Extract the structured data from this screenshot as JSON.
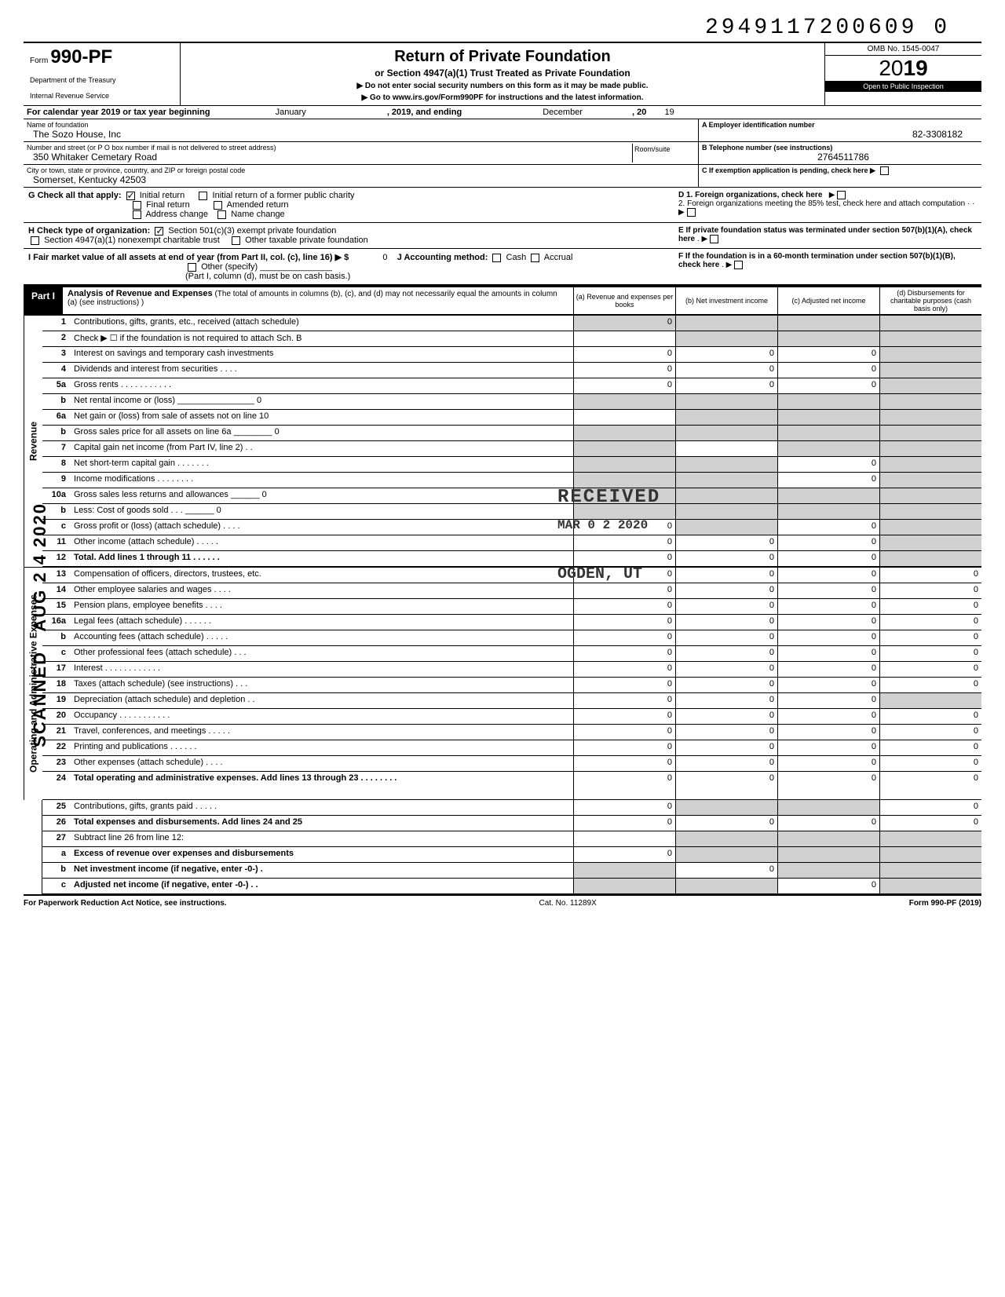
{
  "doc_id": "2949117200609 0",
  "header": {
    "form_prefix": "Form",
    "form_number": "990-PF",
    "dept1": "Department of the Treasury",
    "dept2": "Internal Revenue Service",
    "title": "Return of Private Foundation",
    "subtitle": "or Section 4947(a)(1) Trust Treated as Private Foundation",
    "note1": "▶ Do not enter social security numbers on this form as it may be made public.",
    "note2": "▶ Go to www.irs.gov/Form990PF for instructions and the latest information.",
    "omb": "OMB No. 1545-0047",
    "year_prefix": "20",
    "year": "19",
    "inspection": "Open to Public Inspection"
  },
  "cal_year": {
    "label": "For calendar year 2019 or tax year beginning",
    "begin": "January",
    "mid": ", 2019, and ending",
    "end": "December",
    "suffix": ", 20",
    "yr": "19"
  },
  "foundation": {
    "name_label": "Name of foundation",
    "name": "The Sozo House, Inc",
    "addr_label": "Number and street (or P O box number if mail is not delivered to street address)",
    "addr": "350 Whitaker Cemetary Road",
    "city_label": "City or town, state or province, country, and ZIP or foreign postal code",
    "city": "Somerset, Kentucky 42503",
    "room_label": "Room/suite",
    "ein_label": "A  Employer identification number",
    "ein": "82-3308182",
    "phone_label": "B  Telephone number (see instructions)",
    "phone": "2764511786",
    "c_label": "C  If exemption application is pending, check here ▶"
  },
  "checks": {
    "g_label": "G  Check all that apply:",
    "g_opts": [
      "Initial return",
      "Initial return of a former public charity",
      "Final return",
      "Amended return",
      "Address change",
      "Name change"
    ],
    "h_label": "H  Check type of organization:",
    "h_opts": [
      "Section 501(c)(3) exempt private foundation",
      "Section 4947(a)(1) nonexempt charitable trust",
      "Other taxable private foundation"
    ],
    "i_label": "I   Fair market value of all assets at end of year (from Part II, col. (c), line 16) ▶ $",
    "i_val": "0",
    "j_label": "J  Accounting method:",
    "j_opts": [
      "Cash",
      "Accrual",
      "Other (specify)"
    ],
    "j_note": "(Part I, column (d), must be on cash basis.)",
    "d_label": "D 1. Foreign organizations, check here",
    "d2_label": "2. Foreign organizations meeting the 85% test, check here and attach computation",
    "e_label": "E  If private foundation status was terminated under section 507(b)(1)(A), check here",
    "f_label": "F  If the foundation is in a 60-month termination under section 507(b)(1)(B), check here"
  },
  "part1": {
    "label": "Part I",
    "title": "Analysis of Revenue and Expenses",
    "desc": "(The total of amounts in columns (b), (c), and (d) may not necessarily equal the amounts in column (a) (see instructions) )",
    "col_a": "(a) Revenue and expenses per books",
    "col_b": "(b) Net investment income",
    "col_c": "(c) Adjusted net income",
    "col_d": "(d) Disbursements for charitable purposes (cash basis only)"
  },
  "sections": {
    "revenue": "Revenue",
    "expenses": "Operating and Administrative Expenses"
  },
  "lines": [
    {
      "n": "1",
      "d": "Contributions, gifts, grants, etc., received (attach schedule)",
      "a": "0",
      "b": "",
      "c": "",
      "e": "",
      "sa": true,
      "sb": true,
      "sc": true,
      "sd": true
    },
    {
      "n": "2",
      "d": "Check ▶ ☐ if the foundation is not required to attach Sch. B",
      "a": "",
      "b": "",
      "c": "",
      "e": "",
      "sa": false,
      "sb": true,
      "sc": true,
      "sd": true
    },
    {
      "n": "3",
      "d": "Interest on savings and temporary cash investments",
      "a": "0",
      "b": "0",
      "c": "0",
      "e": "",
      "sd": true
    },
    {
      "n": "4",
      "d": "Dividends and interest from securities . . . .",
      "a": "0",
      "b": "0",
      "c": "0",
      "e": "",
      "sd": true
    },
    {
      "n": "5a",
      "d": "Gross rents . . . . . . . . . . .",
      "a": "0",
      "b": "0",
      "c": "0",
      "e": "",
      "sd": true
    },
    {
      "n": "b",
      "d": "Net rental income or (loss) ________________ 0",
      "a": "",
      "b": "",
      "c": "",
      "e": "",
      "sa": true,
      "sb": true,
      "sc": true,
      "sd": true
    },
    {
      "n": "6a",
      "d": "Net gain or (loss) from sale of assets not on line 10",
      "a": "",
      "b": "",
      "c": "",
      "e": "",
      "sb": true,
      "sc": true,
      "sd": true
    },
    {
      "n": "b",
      "d": "Gross sales price for all assets on line 6a ________ 0",
      "a": "",
      "b": "",
      "c": "",
      "e": "",
      "sa": true,
      "sb": true,
      "sc": true,
      "sd": true
    },
    {
      "n": "7",
      "d": "Capital gain net income (from Part IV, line 2) . .",
      "a": "",
      "b": "",
      "c": "",
      "e": "",
      "sa": true,
      "sc": true,
      "sd": true
    },
    {
      "n": "8",
      "d": "Net short-term capital gain . . . . . . .",
      "a": "",
      "b": "",
      "c": "0",
      "e": "",
      "sa": true,
      "sb": true,
      "sd": true
    },
    {
      "n": "9",
      "d": "Income modifications  . . . . . . . .",
      "a": "",
      "b": "",
      "c": "0",
      "e": "",
      "sa": true,
      "sb": true,
      "sd": true
    },
    {
      "n": "10a",
      "d": "Gross sales less returns and allowances ______ 0",
      "a": "",
      "b": "",
      "c": "",
      "e": "",
      "sa": true,
      "sb": true,
      "sc": true,
      "sd": true
    },
    {
      "n": "b",
      "d": "Less: Cost of goods sold  . . . ______ 0",
      "a": "",
      "b": "",
      "c": "",
      "e": "",
      "sa": true,
      "sb": true,
      "sc": true,
      "sd": true
    },
    {
      "n": "c",
      "d": "Gross profit or (loss) (attach schedule) . . . .",
      "a": "0",
      "b": "",
      "c": "0",
      "e": "",
      "sb": true,
      "sd": true
    },
    {
      "n": "11",
      "d": "Other income (attach schedule) . . . . .",
      "a": "0",
      "b": "0",
      "c": "0",
      "e": "",
      "sd": true
    },
    {
      "n": "12",
      "d": "Total. Add lines 1 through 11 . . . . . .",
      "a": "0",
      "b": "0",
      "c": "0",
      "e": "",
      "bold": true,
      "sd": true
    },
    {
      "n": "13",
      "d": "Compensation of officers, directors, trustees, etc.",
      "a": "0",
      "b": "0",
      "c": "0",
      "e": "0"
    },
    {
      "n": "14",
      "d": "Other employee salaries and wages . . . .",
      "a": "0",
      "b": "0",
      "c": "0",
      "e": "0"
    },
    {
      "n": "15",
      "d": "Pension plans, employee benefits  . . . .",
      "a": "0",
      "b": "0",
      "c": "0",
      "e": "0"
    },
    {
      "n": "16a",
      "d": "Legal fees (attach schedule)  . . . . . .",
      "a": "0",
      "b": "0",
      "c": "0",
      "e": "0"
    },
    {
      "n": "b",
      "d": "Accounting fees (attach schedule) . . . . .",
      "a": "0",
      "b": "0",
      "c": "0",
      "e": "0"
    },
    {
      "n": "c",
      "d": "Other professional fees (attach schedule) . . .",
      "a": "0",
      "b": "0",
      "c": "0",
      "e": "0"
    },
    {
      "n": "17",
      "d": "Interest . . . . . . . . . . . .",
      "a": "0",
      "b": "0",
      "c": "0",
      "e": "0"
    },
    {
      "n": "18",
      "d": "Taxes (attach schedule) (see instructions) . . .",
      "a": "0",
      "b": "0",
      "c": "0",
      "e": "0"
    },
    {
      "n": "19",
      "d": "Depreciation (attach schedule) and depletion . .",
      "a": "0",
      "b": "0",
      "c": "0",
      "e": "",
      "sd": true
    },
    {
      "n": "20",
      "d": "Occupancy . . . . . . . . . . .",
      "a": "0",
      "b": "0",
      "c": "0",
      "e": "0"
    },
    {
      "n": "21",
      "d": "Travel, conferences, and meetings . . . . .",
      "a": "0",
      "b": "0",
      "c": "0",
      "e": "0"
    },
    {
      "n": "22",
      "d": "Printing and publications  . . . . . .",
      "a": "0",
      "b": "0",
      "c": "0",
      "e": "0"
    },
    {
      "n": "23",
      "d": "Other expenses (attach schedule)  . . . .",
      "a": "0",
      "b": "0",
      "c": "0",
      "e": "0"
    },
    {
      "n": "24",
      "d": "Total operating and administrative expenses. Add lines 13 through 23 . . . . . . . .",
      "a": "0",
      "b": "0",
      "c": "0",
      "e": "0",
      "bold": true,
      "tall": true
    },
    {
      "n": "25",
      "d": "Contributions, gifts, grants paid  . . . . .",
      "a": "0",
      "b": "",
      "c": "",
      "e": "0",
      "sb": true,
      "sc": true
    },
    {
      "n": "26",
      "d": "Total expenses and disbursements. Add lines 24 and 25",
      "a": "0",
      "b": "0",
      "c": "0",
      "e": "0",
      "bold": true
    },
    {
      "n": "27",
      "d": "Subtract line 26 from line 12:",
      "a": "",
      "b": "",
      "c": "",
      "e": "",
      "sa": false,
      "sb": true,
      "sc": true,
      "sd": true,
      "noborder": true
    },
    {
      "n": "a",
      "d": "Excess of revenue over expenses and disbursements",
      "a": "0",
      "b": "",
      "c": "",
      "e": "",
      "bold": true,
      "sb": true,
      "sc": true,
      "sd": true
    },
    {
      "n": "b",
      "d": "Net investment income (if negative, enter -0-) .",
      "a": "",
      "b": "0",
      "c": "",
      "e": "",
      "bold": true,
      "sa": true,
      "sc": true,
      "sd": true
    },
    {
      "n": "c",
      "d": "Adjusted net income (if negative, enter -0-) . .",
      "a": "",
      "b": "",
      "c": "0",
      "e": "",
      "bold": true,
      "sa": true,
      "sb": true,
      "sd": true
    }
  ],
  "stamps": {
    "received": "RECEIVED",
    "date": "MAR 0 2 2020",
    "ogden": "OGDEN, UT",
    "side1": "SCANNED",
    "side2": "AUG 2 4 2020"
  },
  "footer": {
    "left": "For Paperwork Reduction Act Notice, see instructions.",
    "center": "Cat. No. 11289X",
    "right": "Form 990-PF (2019)"
  }
}
